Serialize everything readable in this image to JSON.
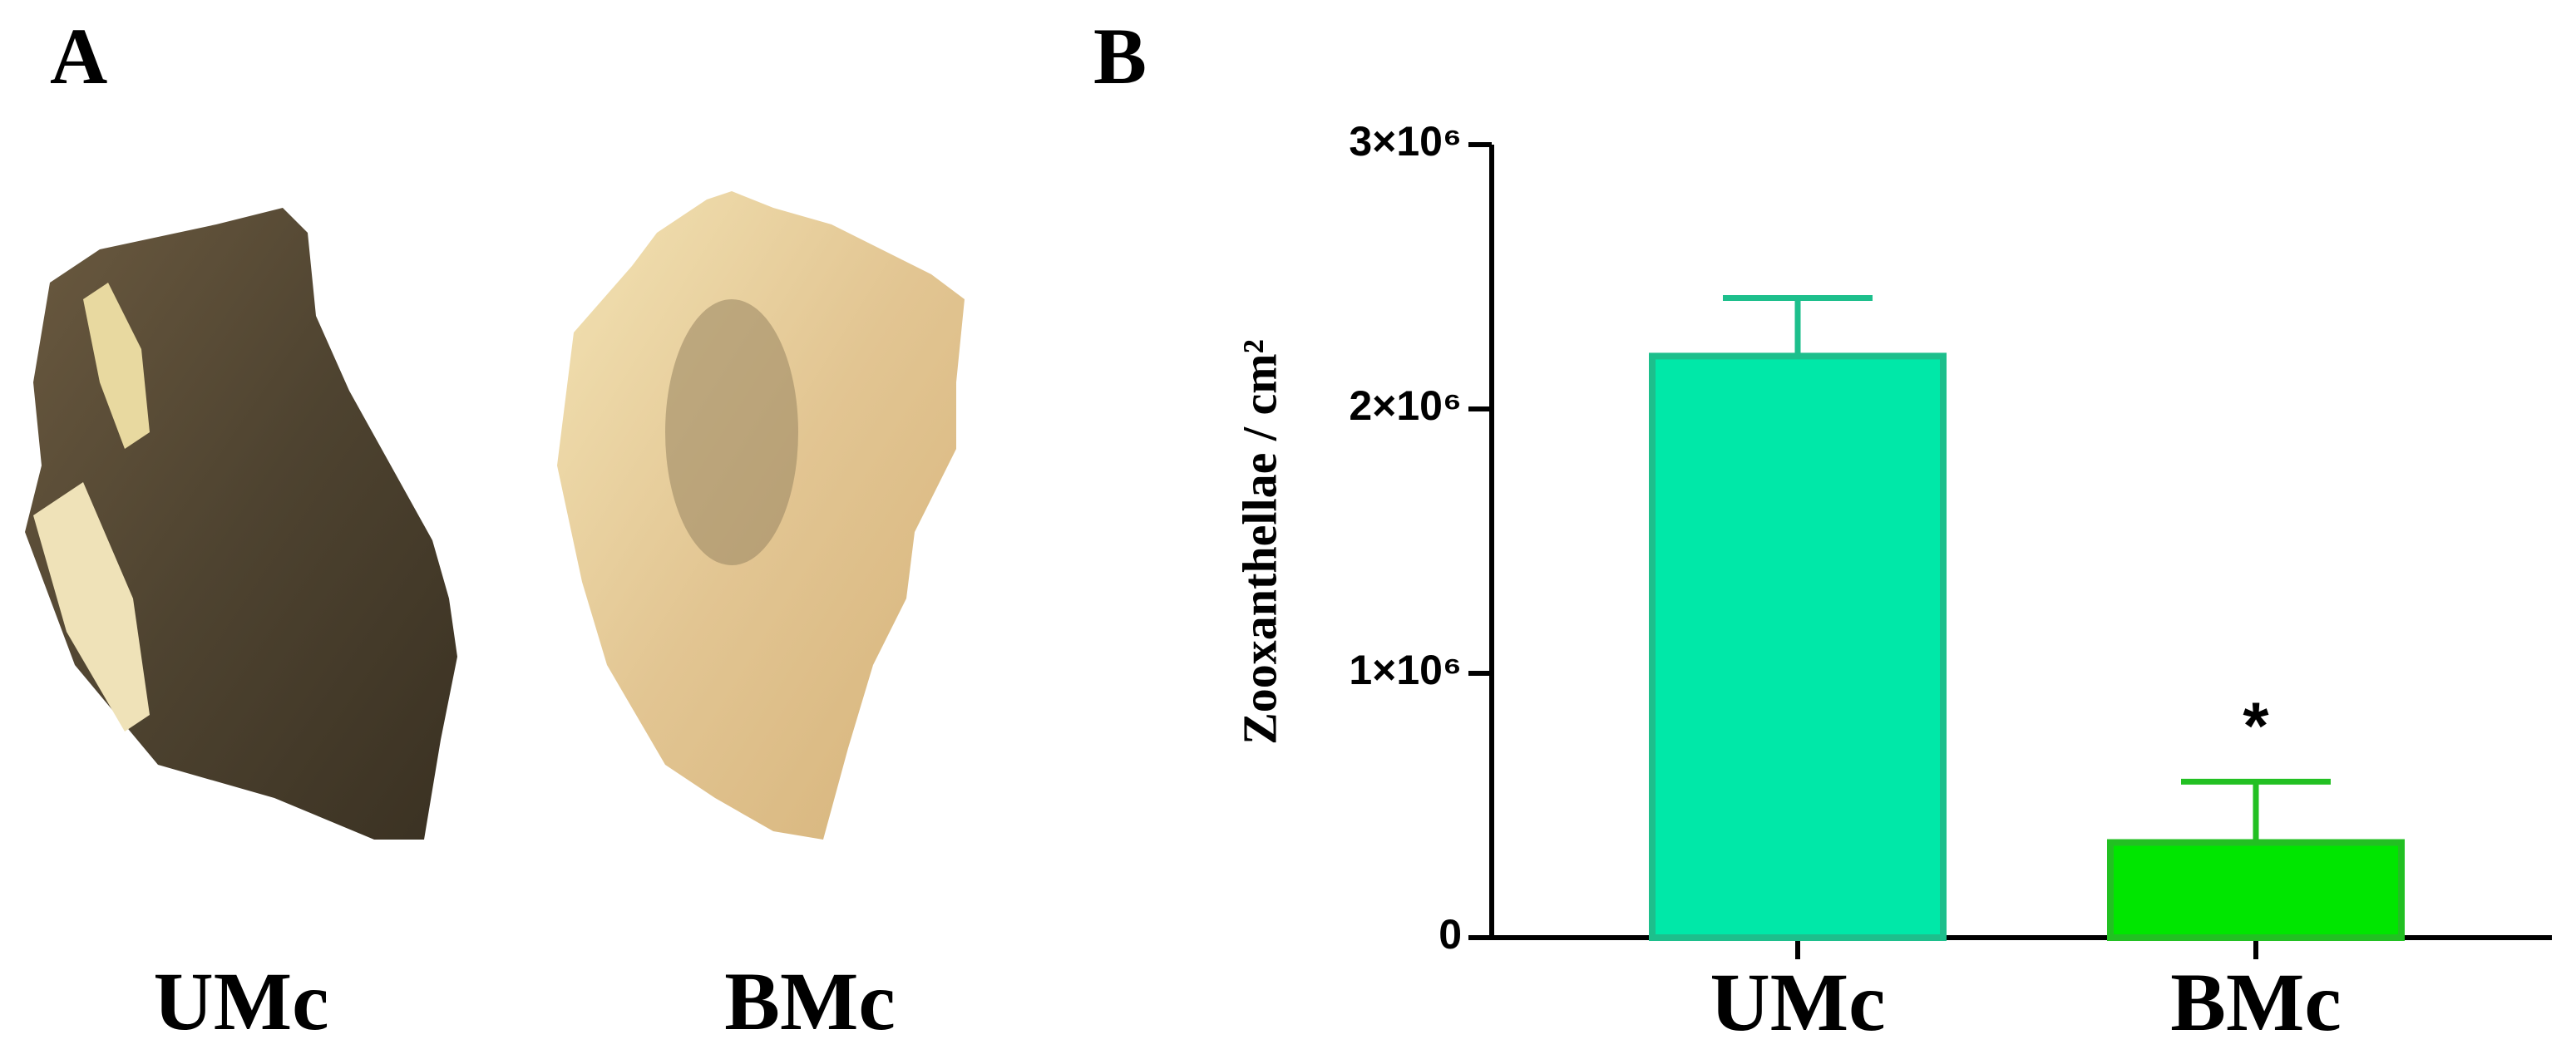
{
  "panel_a": {
    "label": "A",
    "photos": [
      "UMc",
      "BMc"
    ]
  },
  "chart_data": {
    "type": "bar",
    "panel_label": "B",
    "y_label": "Zooxanthellae / cm²",
    "categories": [
      "UMc",
      "BMc"
    ],
    "values": [
      2200000,
      360000
    ],
    "errors": [
      220000,
      230000
    ],
    "significance": [
      null,
      "*"
    ],
    "colors": [
      "#00e8a8",
      "#00e600"
    ],
    "edge_colors": [
      "#1dbf8c",
      "#22c022"
    ],
    "ylim": [
      0,
      3000000
    ],
    "yticks": [
      0,
      {
        "value": 1000000,
        "label": "1×10⁶"
      },
      {
        "value": 2000000,
        "label": "2×10⁶"
      },
      {
        "value": 3000000,
        "label": "3×10⁶"
      }
    ]
  }
}
